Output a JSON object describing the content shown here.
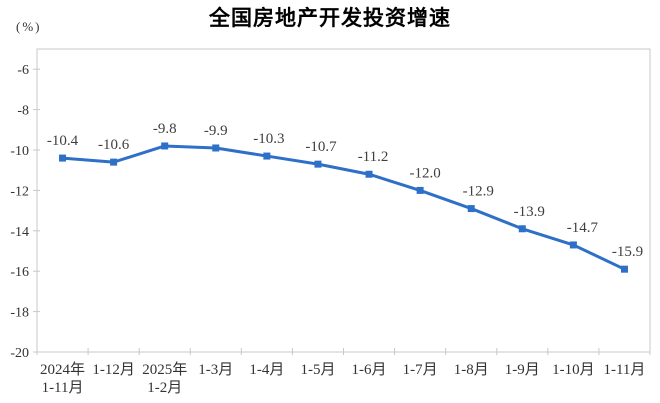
{
  "chart_data": {
    "type": "line",
    "title": "全国房地产开发投资增速",
    "ylabel": "(%)",
    "xlabel": "",
    "categories": [
      "2024年\n1-11月",
      "1-12月",
      "2025年\n1-2月",
      "1-3月",
      "1-4月",
      "1-5月",
      "1-6月",
      "1-7月",
      "1-8月",
      "1-9月",
      "1-10月",
      "1-11月"
    ],
    "values": [
      -10.4,
      -10.6,
      -9.8,
      -9.9,
      -10.3,
      -10.7,
      -11.2,
      -12.0,
      -12.9,
      -13.9,
      -14.7,
      -15.9
    ],
    "data_labels": [
      "-10.4",
      "-10.6",
      "-9.8",
      "-9.9",
      "-10.3",
      "-10.7",
      "-11.2",
      "-12.0",
      "-12.9",
      "-13.9",
      "-14.7",
      "-15.9"
    ],
    "y_ticks": [
      -6,
      -8,
      -10,
      -12,
      -14,
      -16,
      -18,
      -20
    ],
    "ylim": [
      -20,
      -5
    ],
    "grid": false,
    "legend": "none",
    "marker": "square",
    "series_name": "全国房地产开发投资增速",
    "colors": {
      "line": "#2E6FC8",
      "marker": "#2E6FC8",
      "data_label": "#3F3F3F",
      "axis": "#C8C8C8",
      "tick_label": "#333333",
      "title": "#000000"
    }
  }
}
